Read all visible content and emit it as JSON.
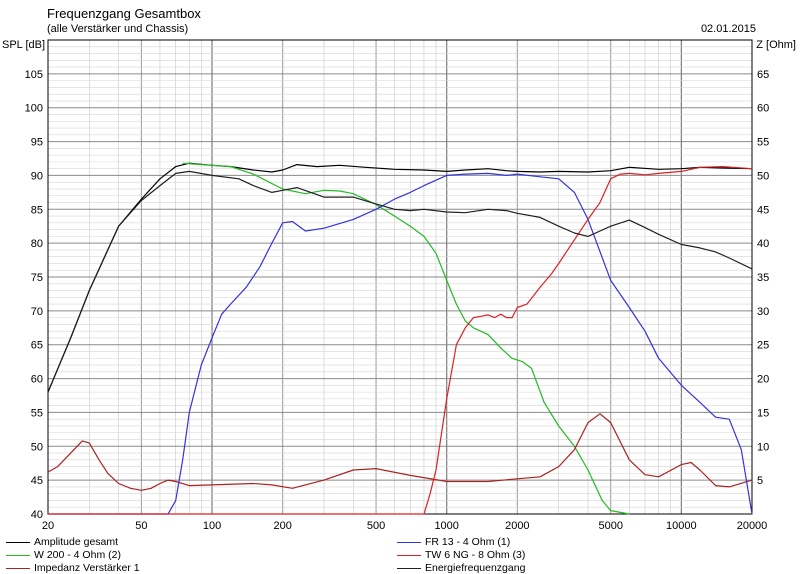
{
  "header": {
    "title": "Frequenzgang Gesamtbox",
    "subtitle": "(alle Verstärker und Chassis)",
    "date": "02.01.2015",
    "ylabel_left": "SPL [dB]",
    "ylabel_right": "Z [Ohm]"
  },
  "chart_data": {
    "type": "line",
    "xscale": "log",
    "xlim": [
      20,
      20000
    ],
    "ylim_left": [
      40,
      110
    ],
    "ylim_right": [
      0,
      70
    ],
    "grid": true,
    "x_tick_labels": [
      {
        "v": 20,
        "t": "20"
      },
      {
        "v": 50,
        "t": "50"
      },
      {
        "v": 100,
        "t": "100"
      },
      {
        "v": 200,
        "t": "200"
      },
      {
        "v": 500,
        "t": "500"
      },
      {
        "v": 1000,
        "t": "1000"
      },
      {
        "v": 2000,
        "t": "2000"
      },
      {
        "v": 5000,
        "t": "5000"
      },
      {
        "v": 10000,
        "t": "10000"
      },
      {
        "v": 20000,
        "t": "20000"
      }
    ],
    "y_left_ticks": [
      40,
      45,
      50,
      55,
      60,
      65,
      70,
      75,
      80,
      85,
      90,
      95,
      100,
      105
    ],
    "y_right_ticks": [
      5,
      10,
      15,
      20,
      25,
      30,
      35,
      40,
      45,
      50,
      55,
      60,
      65
    ],
    "series": [
      {
        "name": "Amplitude gesamt",
        "color": "#000000",
        "axis": "left",
        "x": [
          20,
          25,
          30,
          40,
          50,
          60,
          70,
          80,
          100,
          120,
          150,
          180,
          200,
          230,
          280,
          350,
          450,
          600,
          800,
          1000,
          1200,
          1500,
          1800,
          2000,
          2500,
          3000,
          4000,
          5000,
          6000,
          8000,
          10000,
          12000,
          15000,
          20000
        ],
        "y": [
          58,
          66,
          73,
          82.5,
          86.5,
          89.5,
          91.3,
          91.8,
          91.5,
          91.3,
          90.8,
          90.5,
          90.8,
          91.6,
          91.3,
          91.5,
          91.2,
          90.9,
          90.8,
          90.6,
          90.8,
          91,
          90.7,
          90.6,
          90.5,
          90.6,
          90.5,
          90.7,
          91.2,
          90.9,
          91,
          91.2,
          91.1,
          91
        ]
      },
      {
        "name": "W 200 - 4 Ohm (2)",
        "color": "#22bb22",
        "axis": "left",
        "x": [
          75,
          90,
          100,
          120,
          150,
          200,
          250,
          300,
          350,
          400,
          500,
          600,
          700,
          800,
          900,
          1000,
          1100,
          1200,
          1300,
          1500,
          1700,
          1900,
          2100,
          2300,
          2600,
          3000,
          3500,
          4000,
          4600,
          5000,
          6000
        ],
        "y": [
          91.8,
          91.6,
          91.5,
          91.3,
          90.2,
          88,
          87.3,
          87.8,
          87.7,
          87.3,
          85.7,
          84,
          82.5,
          81,
          78.5,
          74.5,
          71,
          68.5,
          67.5,
          66.5,
          64.5,
          63,
          62.5,
          61.5,
          56.5,
          53,
          50,
          46.5,
          42,
          40.5,
          40
        ]
      },
      {
        "name": "Impedanz Verstärker 1",
        "color": "#aa2222",
        "axis": "right",
        "x": [
          20,
          22,
          25,
          28,
          30,
          33,
          36,
          40,
          45,
          50,
          55,
          60,
          65,
          70,
          80,
          100,
          150,
          180,
          220,
          300,
          400,
          500,
          700,
          1000,
          1500,
          2000,
          2500,
          3000,
          3500,
          4000,
          4500,
          5000,
          6000,
          7000,
          8000,
          10000,
          11000,
          12000,
          14000,
          16000,
          20000
        ],
        "y": [
          6.2,
          7,
          9,
          10.8,
          10.5,
          8,
          6,
          4.5,
          3.8,
          3.5,
          3.8,
          4.5,
          5,
          4.8,
          4.2,
          4.3,
          4.5,
          4.3,
          3.8,
          5,
          6.5,
          6.7,
          5.7,
          4.8,
          4.8,
          5.2,
          5.5,
          7,
          9.5,
          13.5,
          14.8,
          13.5,
          8,
          5.8,
          5.5,
          7.3,
          7.6,
          6.5,
          4.2,
          4,
          5
        ]
      },
      {
        "name": "FR 13 - 4 Ohm (1)",
        "color": "#3333dd",
        "axis": "left",
        "x": [
          20,
          65,
          70,
          75,
          80,
          90,
          100,
          110,
          120,
          140,
          160,
          180,
          200,
          220,
          250,
          300,
          400,
          500,
          600,
          700,
          800,
          1000,
          1200,
          1500,
          1800,
          2000,
          2500,
          3000,
          3500,
          4000,
          5000,
          6000,
          7000,
          8000,
          10000,
          12000,
          14000,
          16000,
          18000,
          20000
        ],
        "y": [
          40,
          40,
          42,
          48,
          55,
          62,
          66,
          69.5,
          71,
          73.5,
          76.5,
          80,
          83,
          83.2,
          81.8,
          82.2,
          83.5,
          85,
          86.5,
          87.5,
          88.5,
          90,
          90.2,
          90.3,
          90,
          90.2,
          89.8,
          89.5,
          87.5,
          83.5,
          74.5,
          70.5,
          67,
          63,
          59,
          56.5,
          54.3,
          54,
          49.5,
          40
        ]
      },
      {
        "name": "TW 6 NG - 8 Ohm (3)",
        "color": "#dd2222",
        "axis": "left",
        "x": [
          20,
          800,
          850,
          900,
          1000,
          1100,
          1200,
          1300,
          1400,
          1500,
          1600,
          1700,
          1800,
          1900,
          2000,
          2200,
          2500,
          2800,
          3000,
          3500,
          4000,
          4500,
          5000,
          5500,
          6000,
          7000,
          8000,
          10000,
          12000,
          15000,
          20000
        ],
        "y": [
          40,
          40,
          43,
          46.5,
          57,
          65,
          67.5,
          69,
          69.2,
          69.4,
          69,
          69.5,
          69,
          69,
          70.5,
          71,
          73.5,
          75.5,
          77,
          80.5,
          83.5,
          86,
          89.5,
          90.2,
          90.3,
          90.1,
          90.3,
          90.6,
          91.2,
          91.3,
          91
        ]
      },
      {
        "name": "Energiefrequenzgang",
        "color": "#202020",
        "axis": "left",
        "x": [
          20,
          25,
          30,
          40,
          50,
          60,
          70,
          80,
          100,
          130,
          150,
          180,
          200,
          230,
          300,
          400,
          500,
          600,
          700,
          800,
          1000,
          1200,
          1500,
          1800,
          2000,
          2500,
          3000,
          3500,
          4000,
          4500,
          5000,
          6000,
          7000,
          8000,
          10000,
          12000,
          14000,
          16000,
          20000
        ],
        "y": [
          58,
          66,
          73,
          82.5,
          86.3,
          88.5,
          90.3,
          90.6,
          90,
          89.5,
          88.5,
          87.5,
          87.8,
          88.2,
          86.8,
          86.8,
          85.8,
          85,
          84.8,
          85,
          84.6,
          84.5,
          85,
          84.8,
          84.4,
          83.8,
          82.5,
          81.5,
          81,
          81.8,
          82.5,
          83.4,
          82.3,
          81.3,
          79.8,
          79.3,
          78.7,
          77.8,
          76.2
        ]
      }
    ]
  },
  "legend": [
    {
      "label": "Amplitude gesamt",
      "color": "#000000"
    },
    {
      "label": "FR 13 - 4 Ohm (1)",
      "color": "#3333dd"
    },
    {
      "label": "W 200 - 4 Ohm (2)",
      "color": "#22bb22"
    },
    {
      "label": "TW 6 NG - 8 Ohm (3)",
      "color": "#dd2222"
    },
    {
      "label": "Impedanz Verstärker 1",
      "color": "#aa2222"
    },
    {
      "label": "Energiefrequenzgang",
      "color": "#202020"
    }
  ]
}
